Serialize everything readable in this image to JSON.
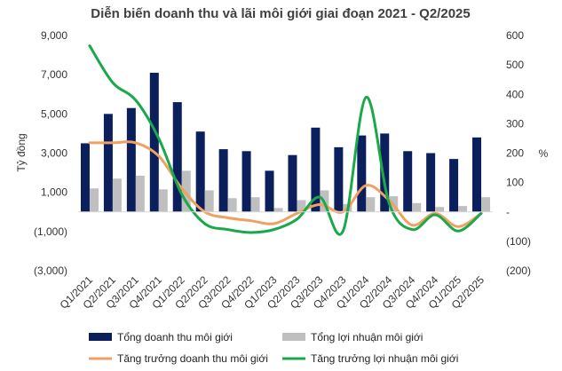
{
  "chart_data": {
    "type": "bar",
    "title": "Diễn biến doanh thu và lãi môi giới giai đoạn 2021 - Q2/2025",
    "ylabel_left": "Tỷ đồng",
    "ylabel_right": "%",
    "categories": [
      "Q1/2021",
      "Q2/2021",
      "Q3/2021",
      "Q4/2021",
      "Q1/2022",
      "Q2/2022",
      "Q3/2022",
      "Q4/2022",
      "Q1/2023",
      "Q2/2023",
      "Q3/2023",
      "Q4/2023",
      "Q1/2024",
      "Q2/2024",
      "Q3/2024",
      "Q4/2024",
      "Q1/2025",
      "Q2/2025"
    ],
    "left_axis": {
      "min": -3000,
      "max": 9000,
      "ticks": [
        9000,
        7000,
        5000,
        3000,
        1000,
        -1000,
        -3000
      ],
      "tick_labels": [
        "9,000",
        "7,000",
        "5,000",
        "3,000",
        "1,000",
        "(1,000)",
        "(3,000)"
      ]
    },
    "right_axis": {
      "min": -200,
      "max": 600,
      "ticks": [
        600,
        500,
        400,
        300,
        200,
        100,
        0,
        -100,
        -200
      ],
      "tick_labels": [
        "600",
        "500",
        "400",
        "300",
        "200",
        "100",
        "-",
        "(100)",
        "(200)"
      ]
    },
    "series": [
      {
        "name": "Tổng doanh thu môi giới",
        "type": "bar",
        "axis": "left",
        "color": "#0b1f5c",
        "values": [
          3500,
          5000,
          5300,
          7100,
          5600,
          4100,
          3200,
          3100,
          2100,
          2900,
          4300,
          3300,
          3900,
          4000,
          3100,
          3000,
          2700,
          3800
        ]
      },
      {
        "name": "Tổng lợi nhuận môi giới",
        "type": "bar",
        "axis": "left",
        "color": "#bfbfbf",
        "values": [
          1200,
          1700,
          1850,
          1150,
          2100,
          1100,
          700,
          750,
          200,
          600,
          1100,
          400,
          750,
          800,
          450,
          250,
          300,
          750
        ]
      },
      {
        "name": "Tăng trưởng doanh thu môi giới",
        "type": "line",
        "axis": "right",
        "color": "#f0a060",
        "values": [
          235,
          235,
          235,
          190,
          80,
          0,
          -20,
          -30,
          -40,
          -5,
          25,
          0,
          90,
          40,
          -45,
          -5,
          -50,
          -5
        ]
      },
      {
        "name": "Tăng trưởng lợi nhuận môi giới",
        "type": "line",
        "axis": "right",
        "color": "#1aa84a",
        "values": [
          565,
          440,
          380,
          250,
          60,
          -40,
          -60,
          -70,
          -60,
          -25,
          50,
          -65,
          390,
          30,
          -60,
          -10,
          -65,
          -5
        ]
      }
    ],
    "grid": false,
    "legend_position": "bottom"
  }
}
